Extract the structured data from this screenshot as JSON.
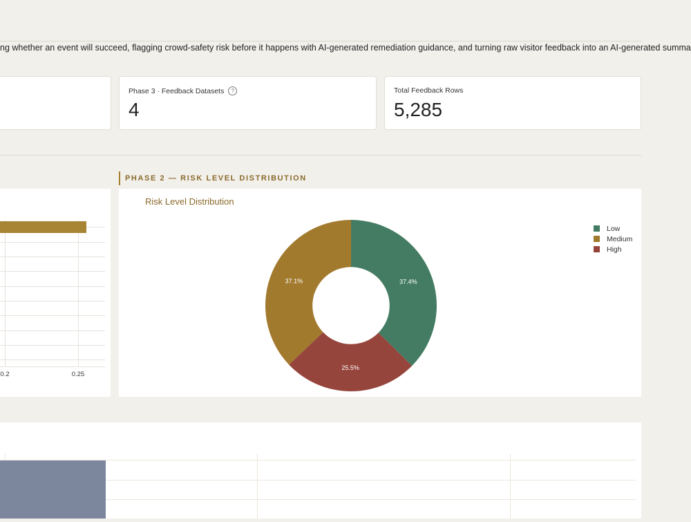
{
  "description": "ng whether an event will succeed, flagging crowd-safety risk before it happens with AI-generated remediation guidance, and turning raw visitor feedback into an AI-generated summary",
  "kpis": [
    {
      "label": "Phase 3 · Feedback Datasets",
      "value": "4",
      "has_help_icon": true
    },
    {
      "label": "Total Feedback Rows",
      "value": "5,285",
      "has_help_icon": false
    }
  ],
  "section": {
    "title": "PHASE 2 — RISK LEVEL DISTRIBUTION"
  },
  "bar_panel": {
    "tick_labels": [
      "0.2",
      "0.25"
    ],
    "bar_color": "#a88535"
  },
  "chart_data": {
    "type": "pie",
    "title": "Risk Level Distribution",
    "legend_position": "top-right",
    "hole": 0.45,
    "categories": [
      "Low",
      "Medium",
      "High"
    ],
    "values": [
      37.4,
      25.5,
      37.1
    ],
    "labels": [
      "37.4%",
      "25.5%",
      "37.1%"
    ],
    "colors": [
      "#447c63",
      "#96453c",
      "#a27a2e"
    ],
    "legend_order": [
      "Low",
      "Medium",
      "High"
    ]
  },
  "bottom_panel": {
    "highlight_color": "#7c879e"
  }
}
